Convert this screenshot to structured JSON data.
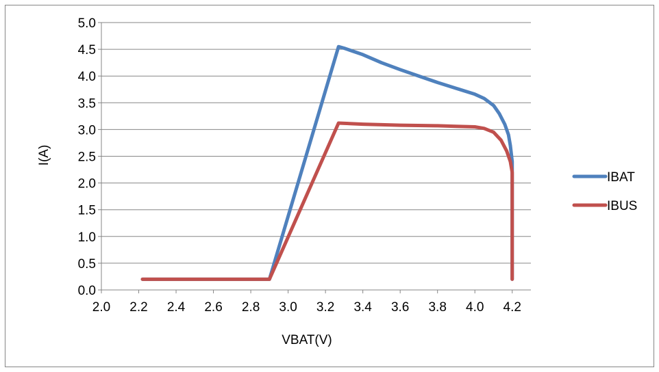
{
  "chart_data": {
    "type": "line",
    "title": "",
    "xlabel": "VBAT(V)",
    "ylabel": "I(A)",
    "xlim": [
      2.0,
      4.3
    ],
    "ylim": [
      0.0,
      5.0
    ],
    "x_ticks": [
      "2.0",
      "2.2",
      "2.4",
      "2.6",
      "2.8",
      "3.0",
      "3.2",
      "3.4",
      "3.6",
      "3.8",
      "4.0",
      "4.2"
    ],
    "y_ticks": [
      "0.0",
      "0.5",
      "1.0",
      "1.5",
      "2.0",
      "2.5",
      "3.0",
      "3.5",
      "4.0",
      "4.5",
      "5.0"
    ],
    "grid": "horizontal",
    "legend_position": "right",
    "series": [
      {
        "name": "IBAT",
        "color": "#4f81bd",
        "x": [
          2.22,
          2.9,
          3.27,
          3.3,
          3.4,
          3.5,
          3.6,
          3.7,
          3.8,
          3.9,
          4.0,
          4.05,
          4.1,
          4.13,
          4.16,
          4.18,
          4.19,
          4.2,
          4.2,
          4.2,
          4.2,
          4.2
        ],
        "y": [
          0.2,
          0.2,
          4.55,
          4.52,
          4.4,
          4.25,
          4.12,
          4.0,
          3.88,
          3.77,
          3.66,
          3.58,
          3.45,
          3.3,
          3.1,
          2.9,
          2.7,
          2.4,
          2.0,
          1.0,
          0.5,
          0.2
        ]
      },
      {
        "name": "IBUS",
        "color": "#c0504d",
        "x": [
          2.22,
          2.9,
          3.27,
          3.4,
          3.6,
          3.8,
          3.9,
          4.0,
          4.05,
          4.1,
          4.14,
          4.17,
          4.19,
          4.2,
          4.2,
          4.2,
          4.2
        ],
        "y": [
          0.2,
          0.2,
          3.12,
          3.1,
          3.08,
          3.07,
          3.06,
          3.05,
          3.02,
          2.95,
          2.8,
          2.6,
          2.4,
          2.2,
          1.5,
          0.8,
          0.2
        ]
      }
    ]
  }
}
